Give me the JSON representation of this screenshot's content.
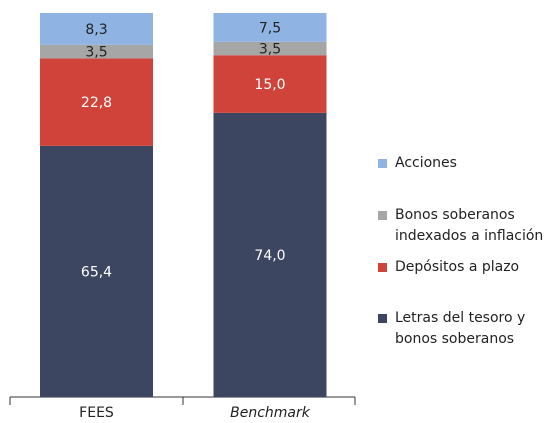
{
  "chart_data": {
    "type": "stacked_bar",
    "categories": [
      "FEES",
      "Benchmark"
    ],
    "ylim": [
      0,
      100
    ],
    "series": [
      {
        "name": "Letras del tesoro y bonos soberanos",
        "color": "#3d4660",
        "values": [
          65.4,
          74.0
        ],
        "value_labels": [
          "65,4",
          "74,0"
        ]
      },
      {
        "name": "Depósitos a plazo",
        "color": "#d0433a",
        "values": [
          22.8,
          15.0
        ],
        "value_labels": [
          "22,8",
          "15,0"
        ]
      },
      {
        "name": "Bonos soberanos indexados a inflación",
        "color": "#a6a6a6",
        "values": [
          3.5,
          3.5
        ],
        "value_labels": [
          "3,5",
          "3,5"
        ]
      },
      {
        "name": "Acciones",
        "color": "#8fb4e3",
        "values": [
          8.3,
          7.5
        ],
        "value_labels": [
          "8,3",
          "7,5"
        ]
      }
    ]
  }
}
